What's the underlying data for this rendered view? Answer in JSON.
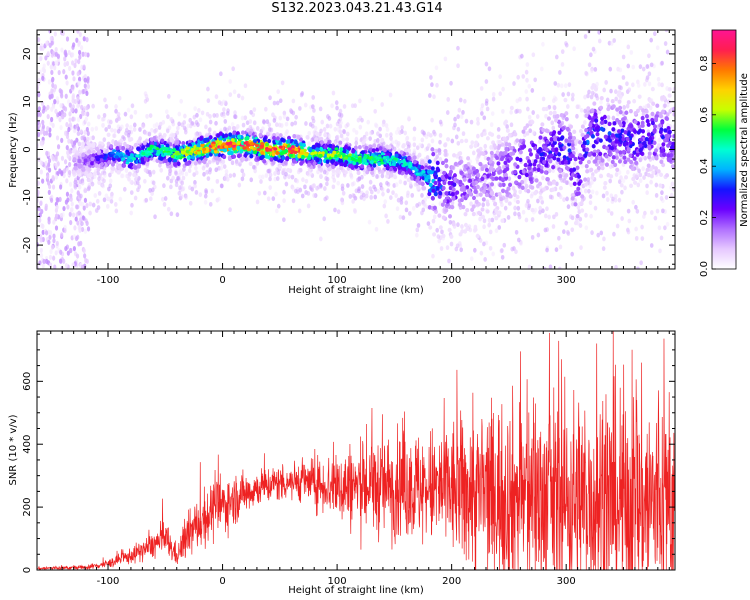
{
  "title": "S132.2023.043.21.43.G14",
  "chart_data": [
    {
      "type": "heatmap",
      "xlabel": "Height of straight line (km)",
      "ylabel": "Frequency (Hz)",
      "xlim": [
        -162,
        395
      ],
      "ylim": [
        -25,
        25
      ],
      "x_ticks": [
        -100,
        0,
        100,
        200,
        300
      ],
      "y_ticks": [
        -20,
        -10,
        0,
        10,
        20
      ],
      "colorbar": {
        "label": "Normalized spectral amplitude",
        "range": [
          0.0,
          0.93
        ],
        "ticks": [
          "0.0",
          "0.2",
          "0.4",
          "0.6",
          "0.8"
        ],
        "tick_values": [
          0.0,
          0.2,
          0.4,
          0.6,
          0.8
        ],
        "colormap": [
          "#ffffff",
          "#e6c8ff",
          "#b070ff",
          "#6a00ff",
          "#1414ff",
          "#00b4ff",
          "#00ffd2",
          "#00ff3c",
          "#c8ff00",
          "#ffd200",
          "#ff7800",
          "#ff1e50",
          "#ff1493"
        ]
      },
      "ridge": {
        "x": [
          -130,
          -110,
          -95,
          -80,
          -60,
          -40,
          -20,
          0,
          20,
          40,
          60,
          80,
          100,
          120,
          140,
          160,
          180,
          200,
          220,
          240,
          260,
          280,
          300,
          310,
          320,
          340,
          360,
          380,
          395
        ],
        "freq": [
          -3,
          -2,
          -1,
          -2,
          0,
          -1,
          0,
          1,
          1,
          0,
          0,
          -1,
          -1,
          -2,
          -2,
          -3,
          -6,
          -8,
          -7,
          -5,
          -3,
          -1,
          1,
          -7,
          3,
          3,
          2,
          3,
          2
        ],
        "amplitude": [
          0.12,
          0.25,
          0.35,
          0.45,
          0.5,
          0.55,
          0.72,
          0.85,
          0.8,
          0.82,
          0.85,
          0.6,
          0.6,
          0.55,
          0.5,
          0.45,
          0.4,
          0.25,
          0.18,
          0.2,
          0.25,
          0.28,
          0.3,
          0.3,
          0.32,
          0.3,
          0.28,
          0.28,
          0.25
        ]
      },
      "grid": false
    },
    {
      "type": "line",
      "xlabel": "Height of straight line (km)",
      "ylabel": "SNR (10 * v/v)",
      "xlim": [
        -162,
        395
      ],
      "ylim": [
        0,
        760
      ],
      "x_ticks": [
        -100,
        0,
        100,
        200,
        300
      ],
      "y_ticks": [
        0,
        200,
        400,
        600
      ],
      "color": "#ee2222",
      "envelope": {
        "x": [
          -162,
          -120,
          -100,
          -80,
          -60,
          -50,
          -40,
          -30,
          -20,
          -10,
          0,
          10,
          20,
          30,
          40,
          50,
          60,
          70,
          80,
          90,
          100,
          110,
          120,
          140,
          160,
          180,
          200,
          220,
          240,
          260,
          280,
          300,
          320,
          340,
          360,
          380,
          395
        ],
        "mean": [
          5,
          8,
          20,
          45,
          80,
          100,
          45,
          110,
          150,
          185,
          205,
          225,
          245,
          260,
          270,
          278,
          282,
          285,
          275,
          270,
          265,
          265,
          265,
          265,
          265,
          260,
          255,
          245,
          240,
          235,
          230,
          225,
          225,
          220,
          215,
          215,
          210
        ],
        "spread": [
          3,
          4,
          8,
          15,
          25,
          35,
          20,
          40,
          50,
          55,
          55,
          45,
          40,
          35,
          35,
          35,
          35,
          40,
          45,
          55,
          70,
          80,
          85,
          95,
          100,
          110,
          130,
          150,
          170,
          185,
          195,
          200,
          205,
          210,
          210,
          210,
          210
        ]
      },
      "grid": false
    }
  ]
}
